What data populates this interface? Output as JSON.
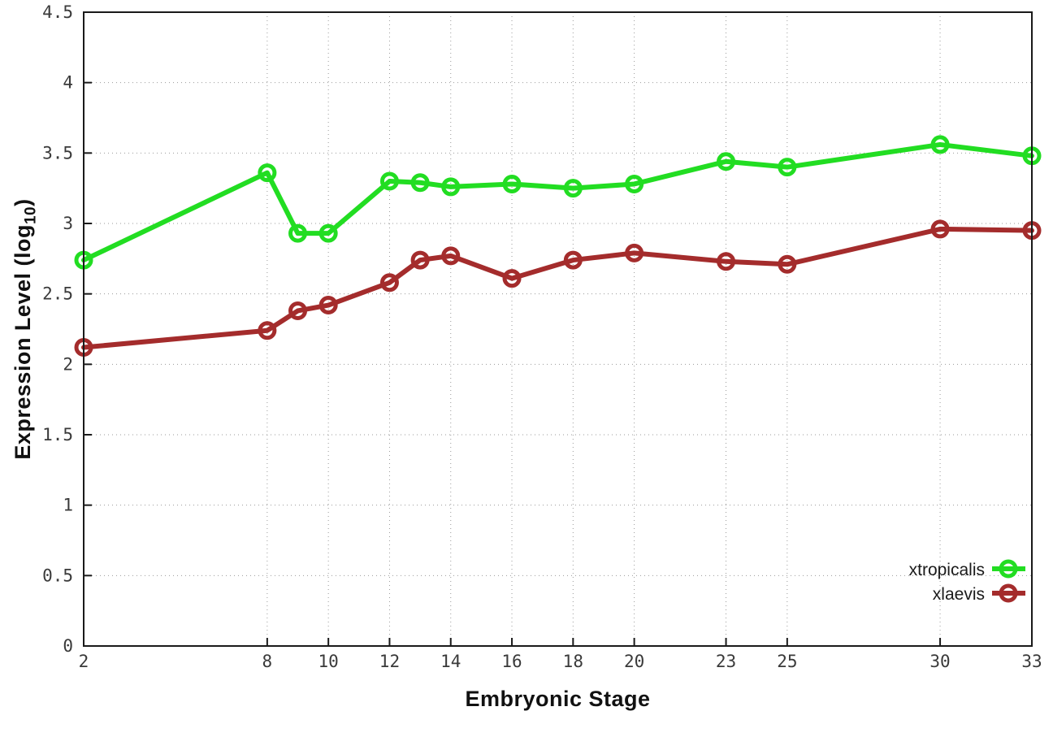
{
  "figure": {
    "background": "#ffffff"
  },
  "chart_data": {
    "type": "line",
    "title": "",
    "xlabel": "Embryonic Stage",
    "ylabel": "Expression Level (log10)",
    "ylabel_prefix": "Expression Level (log",
    "ylabel_sub": "10",
    "ylabel_suffix": ")",
    "xlim": [
      2,
      33
    ],
    "ylim": [
      0,
      4.5
    ],
    "grid": true,
    "legend_position": "bottom-right-inside",
    "x": [
      2,
      8,
      9,
      10,
      12,
      13,
      14,
      16,
      18,
      20,
      23,
      25,
      30,
      33
    ],
    "xtick_values": [
      2,
      8,
      10,
      12,
      14,
      16,
      18,
      20,
      23,
      25,
      30,
      33
    ],
    "xtick_labels": [
      "2",
      "8",
      "10",
      "12",
      "14",
      "16",
      "18",
      "20",
      "23",
      "25",
      "30",
      "33"
    ],
    "ytick_values": [
      0,
      0.5,
      1,
      1.5,
      2,
      2.5,
      3,
      3.5,
      4,
      4.5
    ],
    "ytick_labels": [
      "0",
      "0.5",
      "1",
      "1.5",
      "2",
      "2.5",
      "3",
      "3.5",
      "4",
      "4.5"
    ],
    "series": [
      {
        "name": "xtropicalis",
        "color": "#22dd22",
        "values": [
          2.74,
          3.36,
          2.93,
          2.93,
          3.3,
          3.29,
          3.26,
          3.28,
          3.25,
          3.28,
          3.44,
          3.4,
          3.56,
          3.48
        ]
      },
      {
        "name": "xlaevis",
        "color": "#a42c2c",
        "values": [
          2.12,
          2.24,
          2.38,
          2.42,
          2.58,
          2.74,
          2.77,
          2.61,
          2.74,
          2.79,
          2.73,
          2.71,
          2.96,
          2.95
        ]
      }
    ]
  },
  "style_colors": {
    "grid": "#9a9a9a",
    "axis": "#1a1a1a",
    "tick_text": "#3a3a3a"
  }
}
